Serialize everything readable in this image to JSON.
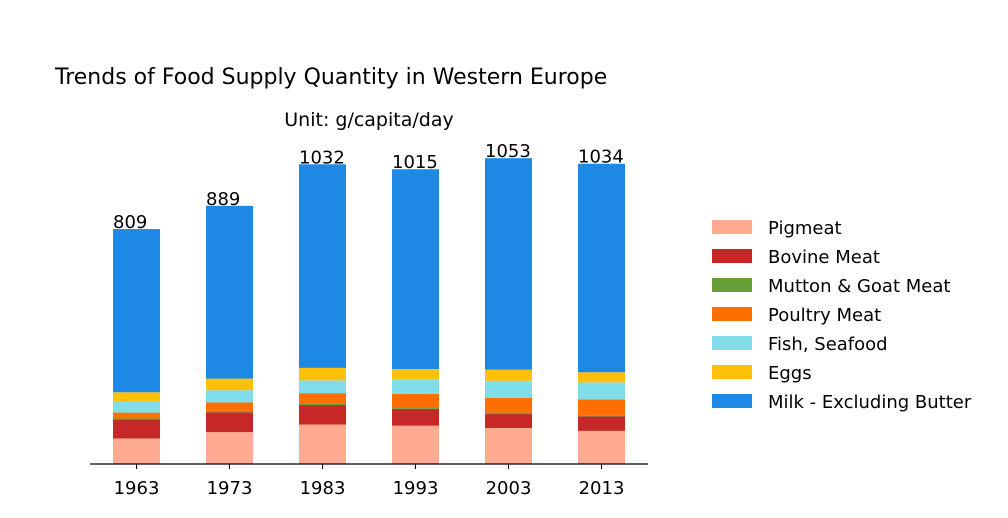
{
  "chart_data": {
    "type": "bar",
    "stacked": true,
    "title": "Trends of Food Supply Quantity in Western Europe",
    "subtitle": "Unit: g/capita/day",
    "xlabel": "",
    "ylabel": "",
    "categories": [
      "1963",
      "1973",
      "1983",
      "1993",
      "2003",
      "2013"
    ],
    "totals": [
      "809",
      "889",
      "1032",
      "1015",
      "1053",
      "1034"
    ],
    "ylim": [
      0,
      1100
    ],
    "grid": false,
    "legend_position": "right",
    "series": [
      {
        "name": "Pigmeat",
        "color": "#FFAB91",
        "values": [
          88,
          110,
          136,
          132,
          124,
          114
        ]
      },
      {
        "name": "Bovine Meat",
        "color": "#C62828",
        "values": [
          65,
          68,
          67,
          58,
          48,
          50
        ]
      },
      {
        "name": "Mutton & Goat Meat",
        "color": "#689F38",
        "values": [
          4,
          5,
          6,
          6,
          5,
          4
        ]
      },
      {
        "name": "Poultry Meat",
        "color": "#FF6F00",
        "values": [
          20,
          29,
          35,
          45,
          51,
          54
        ]
      },
      {
        "name": "Fish, Seafood",
        "color": "#80DEEA",
        "values": [
          38,
          42,
          44,
          52,
          59,
          59
        ]
      },
      {
        "name": "Eggs",
        "color": "#FFC107",
        "values": [
          32,
          40,
          43,
          34,
          38,
          35
        ]
      },
      {
        "name": "Milk - Excluding Butter",
        "color": "#1E88E5",
        "values": [
          562,
          595,
          701,
          688,
          728,
          718
        ]
      }
    ]
  }
}
